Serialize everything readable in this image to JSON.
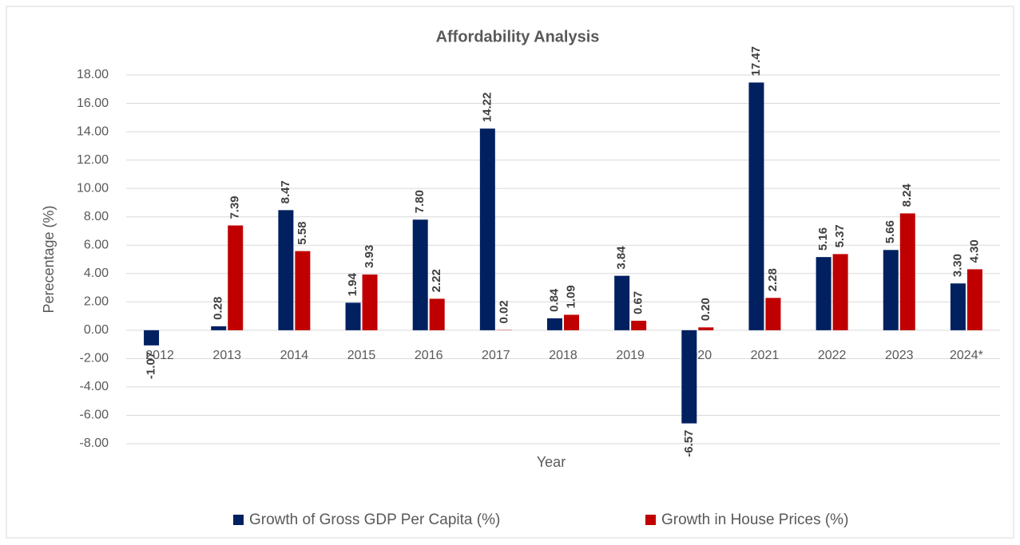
{
  "chart_data": {
    "type": "bar",
    "title": "Affordability Analysis",
    "x_label": "Year",
    "y_label": "Perecentage (%)",
    "categories": [
      "2012",
      "2013",
      "2014",
      "2015",
      "2016",
      "2017",
      "2018",
      "2019",
      "2020",
      "2021",
      "2022",
      "2023",
      "2024*"
    ],
    "series": [
      {
        "name": "Growth of Gross GDP Per Capita (%)",
        "color": "#002060",
        "values": [
          -1.07,
          0.28,
          8.47,
          1.94,
          7.8,
          14.22,
          0.84,
          3.84,
          -6.57,
          17.47,
          5.16,
          5.66,
          3.3
        ],
        "value_labels": [
          "-1.07",
          "0.28",
          "8.47",
          "1.94",
          "7.80",
          "14.22",
          "0.84",
          "3.84",
          "-6.57",
          "17.47",
          "5.16",
          "5.66",
          "3.30"
        ]
      },
      {
        "name": "Growth in House Prices (%)",
        "color": "#c00000",
        "values": [
          null,
          7.39,
          5.58,
          3.93,
          2.22,
          0.02,
          1.09,
          0.67,
          0.2,
          2.28,
          5.37,
          8.24,
          4.3
        ],
        "value_labels": [
          null,
          "7.39",
          "5.58",
          "3.93",
          "2.22",
          "0.02",
          "1.09",
          "0.67",
          "0.20",
          "2.28",
          "5.37",
          "8.24",
          "4.30"
        ]
      }
    ],
    "ylim": [
      -8,
      18
    ],
    "yticks": [
      {
        "value": -8,
        "label": "-8.00"
      },
      {
        "value": -6,
        "label": "-6.00"
      },
      {
        "value": -4,
        "label": "-4.00"
      },
      {
        "value": -2,
        "label": "-2.00"
      },
      {
        "value": 0,
        "label": "0.00"
      },
      {
        "value": 2,
        "label": "2.00"
      },
      {
        "value": 4,
        "label": "4.00"
      },
      {
        "value": 6,
        "label": "6.00"
      },
      {
        "value": 8,
        "label": "8.00"
      },
      {
        "value": 10,
        "label": "10.00"
      },
      {
        "value": 12,
        "label": "12.00"
      },
      {
        "value": 14,
        "label": "14.00"
      },
      {
        "value": 16,
        "label": "16.00"
      },
      {
        "value": 18,
        "label": "18.00"
      }
    ],
    "grid": true,
    "legend": "bottom"
  }
}
